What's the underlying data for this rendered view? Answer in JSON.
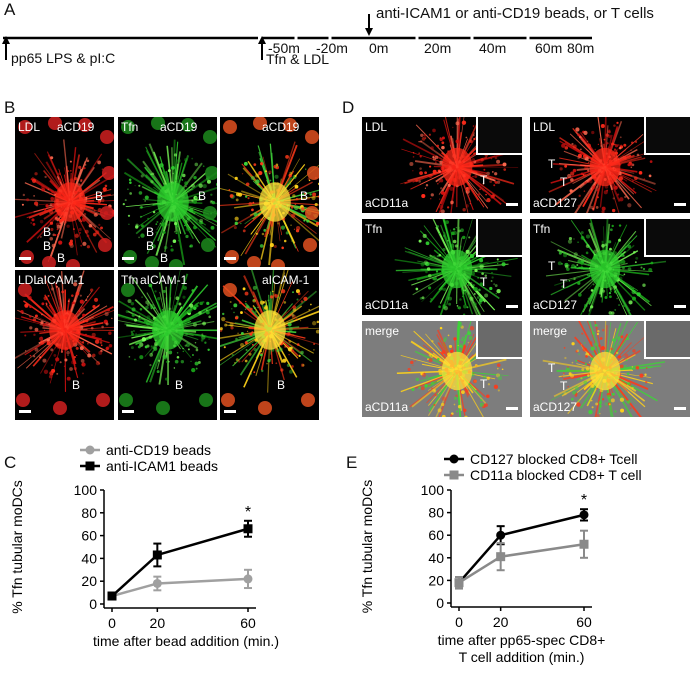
{
  "panels": {
    "A": "A",
    "B": "B",
    "C": "C",
    "D": "D",
    "E": "E"
  },
  "timeline": {
    "top_label": "anti-ICAM1 or anti-CD19 beads, or T cells",
    "ticks": [
      "-50m",
      "-20m",
      "0m",
      "20m",
      "40m",
      "60m",
      "80m"
    ],
    "start_label": "pp65 LPS & pI:C",
    "tfn_label": "Tfn & LDL"
  },
  "panel_b": {
    "row1": [
      {
        "left": "LDL",
        "right": "aCD19",
        "tint": "red"
      },
      {
        "left": "Tfn",
        "right": "aCD19",
        "tint": "green"
      },
      {
        "left": "",
        "right": "aCD19",
        "tint": "merge"
      }
    ],
    "row2": [
      {
        "left": "LDL",
        "right": "aICAM-1",
        "tint": "red"
      },
      {
        "left": "Tfn",
        "right": "aICAM-1",
        "tint": "green"
      },
      {
        "left": "",
        "right": "aICAM-1",
        "tint": "merge"
      }
    ],
    "bead": "B"
  },
  "panel_d": {
    "rows": [
      {
        "col1_top": "LDL",
        "col1_bottom": "aCD11a",
        "col2_top": "LDL",
        "col2_bottom": "aCD127",
        "tint": "red"
      },
      {
        "col1_top": "Tfn",
        "col1_bottom": "aCD11a",
        "col2_top": "Tfn",
        "col2_bottom": "aCD127",
        "tint": "green"
      },
      {
        "col1_top": "merge",
        "col1_bottom": "aCD11a",
        "col2_top": "merge",
        "col2_bottom": "aCD127",
        "tint": "merge"
      }
    ],
    "tcell": "T"
  },
  "chart_data": [
    {
      "type": "line",
      "panel": "C",
      "xlabel": "time after bead addition (min.)",
      "ylabel": "% Tfn tubular moDCs",
      "x": [
        0,
        20,
        60
      ],
      "ylim": [
        0,
        100
      ],
      "yticks": [
        0,
        20,
        40,
        60,
        80,
        100
      ],
      "xticks": [
        0,
        20,
        60
      ],
      "legend_position": "top-left",
      "series": [
        {
          "name": "anti-CD19 beads",
          "values": [
            7,
            18,
            22
          ],
          "errors": [
            3,
            6,
            8
          ],
          "color": "#a0a0a0",
          "marker": "circle"
        },
        {
          "name": "anti-ICAM1 beads",
          "values": [
            7,
            43,
            66
          ],
          "errors": [
            3,
            10,
            7
          ],
          "color": "#000000",
          "marker": "square"
        }
      ],
      "annotations": [
        {
          "text": "*",
          "x": 60
        }
      ]
    },
    {
      "type": "line",
      "panel": "E",
      "xlabel_line1": "time after pp65-spec CD8+",
      "xlabel_line2": "T cell addition (min.)",
      "ylabel": "% Tfn tubular moDCs",
      "x": [
        0,
        20,
        60
      ],
      "ylim": [
        0,
        100
      ],
      "yticks": [
        0,
        20,
        40,
        60,
        80,
        100
      ],
      "xticks": [
        0,
        20,
        60
      ],
      "legend_position": "top-left",
      "series": [
        {
          "name": "CD127 blocked CD8+ Tcell",
          "values": [
            18,
            60,
            78
          ],
          "errors": [
            5,
            8,
            5
          ],
          "color": "#000000",
          "marker": "circle"
        },
        {
          "name": "CD11a blocked CD8+ T cell",
          "values": [
            18,
            41,
            52
          ],
          "errors": [
            5,
            12,
            12
          ],
          "color": "#8a8a8a",
          "marker": "square"
        }
      ],
      "annotations": [
        {
          "text": "*",
          "x": 60
        }
      ]
    }
  ]
}
